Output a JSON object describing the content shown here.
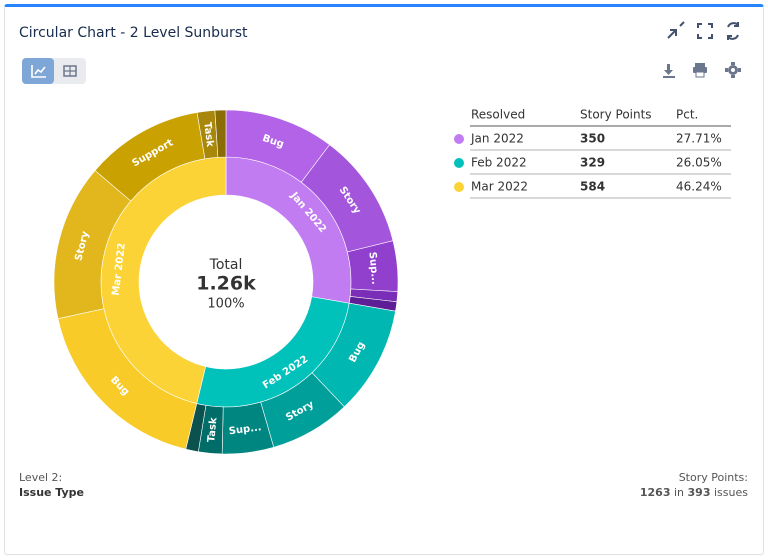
{
  "chart_data": {
    "type": "sunburst",
    "title": "Circular Chart - 2 Level Sunburst",
    "categories": [
      "Jan 2022",
      "Feb 2022",
      "Mar 2022"
    ],
    "values": [
      350,
      329,
      584
    ],
    "value_labels": [
      "27.71%",
      "26.05%",
      "46.24%"
    ],
    "colors": [
      "#c27cf2",
      "#00c2bb",
      "#fcd337"
    ],
    "children": [
      {
        "categories": [
          "Bug",
          "Story",
          "Sup...",
          null,
          null
        ],
        "values": [
          130,
          137,
          60,
          12,
          11
        ],
        "colors": [
          "#b263e8",
          "#a355dc",
          "#9040cc",
          "#7a2eb8",
          "#5e1f96"
        ]
      },
      {
        "categories": [
          "Bug",
          "Story",
          "Sup...",
          "Task",
          null
        ],
        "values": [
          129,
          96,
          61,
          28,
          15
        ],
        "colors": [
          "#00b7b1",
          "#009f9a",
          "#008681",
          "#006d69",
          "#0b524e"
        ]
      },
      {
        "categories": [
          "Bug",
          "Story",
          "Support",
          "Task",
          null
        ],
        "values": [
          225,
          185,
          140,
          21,
          13
        ],
        "colors": [
          "#f8cb29",
          "#e2b71e",
          "#c9a201",
          "#a9870b",
          "#8a6d05"
        ]
      }
    ],
    "center": {
      "label": "Total",
      "total": "1.26k",
      "pct": "100%"
    },
    "legend_headers": [
      "Resolved",
      "Story Points",
      "Pct."
    ],
    "footer": {
      "level_label": "Level 2:",
      "level": "Issue Type",
      "points_label": "Story Points:",
      "points": 1263,
      "in": "in",
      "issues": 393,
      "issues_label": "issues"
    }
  }
}
